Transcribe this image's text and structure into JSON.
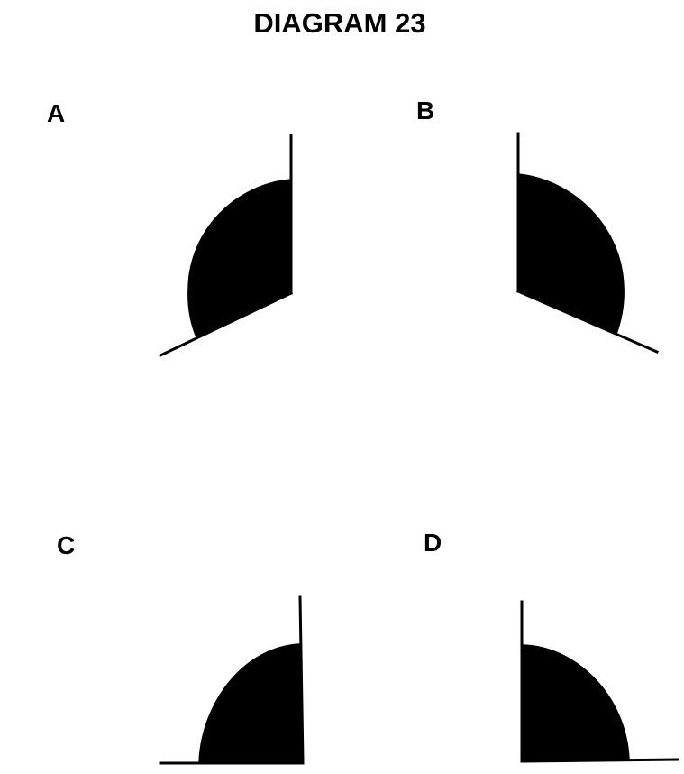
{
  "title": "DIAGRAM 23",
  "panels": [
    {
      "label": "A"
    },
    {
      "label": "B"
    },
    {
      "label": "C"
    },
    {
      "label": "D"
    }
  ],
  "colors": {
    "ink": "#000000",
    "background": "#ffffff"
  }
}
